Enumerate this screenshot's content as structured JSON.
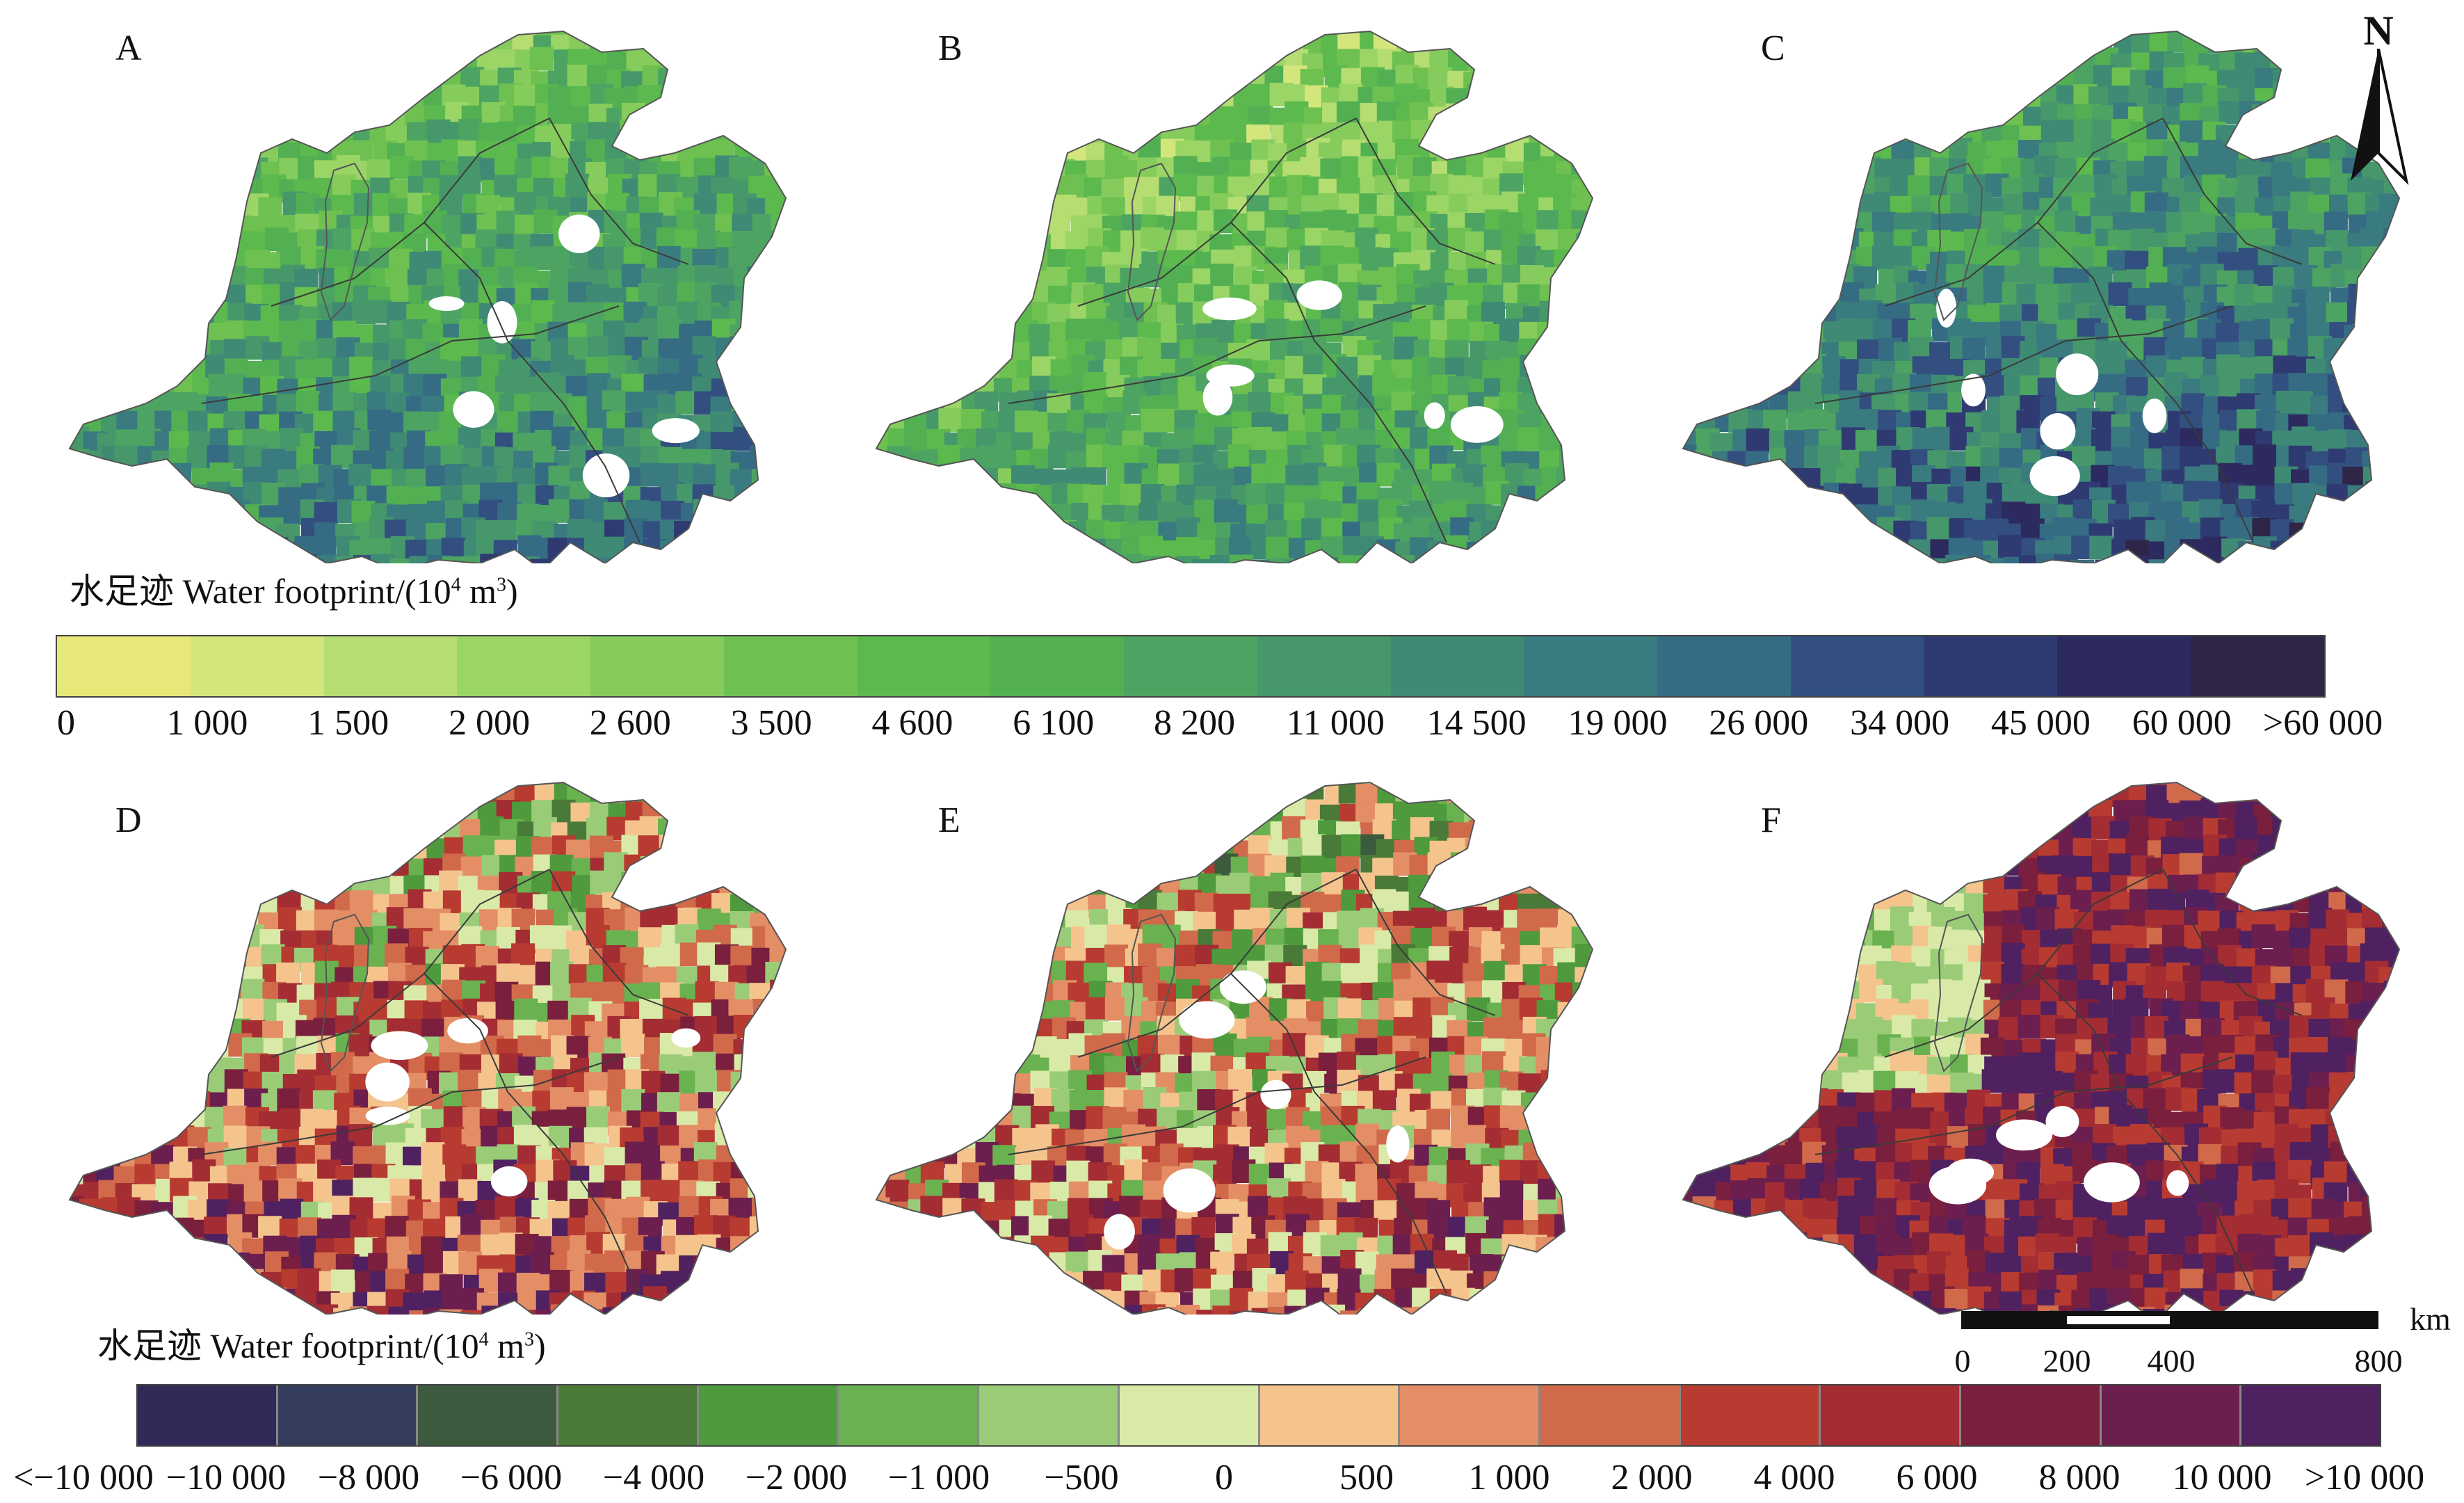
{
  "panels": {
    "a": "A",
    "b": "B",
    "c": "C",
    "d": "D",
    "e": "E",
    "f": "F"
  },
  "legend_top": {
    "title_cn": "水足迹",
    "title_en": "Water footprint/(10",
    "title_exp": "4",
    "title_unit": " m",
    "title_unit_exp": "3",
    "title_close": ")",
    "ticks": [
      "0",
      "1 000",
      "1 500",
      "2 000",
      "2 600",
      "3 500",
      "4 600",
      "6 100",
      "8 200",
      "11 000",
      "14 500",
      "19 000",
      "26 000",
      "34 000",
      "45 000",
      "60 000",
      ">60 000"
    ],
    "colors": [
      "#e6e878",
      "#d2e67c",
      "#b6dd72",
      "#9ad566",
      "#86cc5c",
      "#6ec150",
      "#5cb94e",
      "#52b053",
      "#4da462",
      "#46986b",
      "#3f8a74",
      "#397b7f",
      "#356c84",
      "#324f7f",
      "#2f3a72",
      "#2c2a5e",
      "#2f2547"
    ]
  },
  "legend_bottom": {
    "title_cn": "水足迹",
    "title_en": "Water footprint/(10",
    "title_exp": "4",
    "title_unit": " m",
    "title_unit_exp": "3",
    "title_close": ")",
    "ticks": [
      "<−10 000",
      "−10 000",
      "−8 000",
      "−6 000",
      "−4 000",
      "−2 000",
      "−1 000",
      "−500",
      "0",
      "500",
      "1 000",
      "2 000",
      "4 000",
      "6 000",
      "8 000",
      "10 000",
      ">10 000"
    ],
    "colors": [
      "#2f2a57",
      "#343d5c",
      "#3c5a3e",
      "#4a7a37",
      "#4e9a3c",
      "#6ab24f",
      "#9acc78",
      "#d9eaa8",
      "#f4c48c",
      "#e48e66",
      "#d06a4a",
      "#b83b31",
      "#a32d32",
      "#7a1f3d",
      "#6c1f4e",
      "#4f2160"
    ]
  },
  "north": {
    "label": "N"
  },
  "scale": {
    "unit": "km",
    "labels": [
      "0",
      "200",
      "400",
      "800"
    ]
  }
}
